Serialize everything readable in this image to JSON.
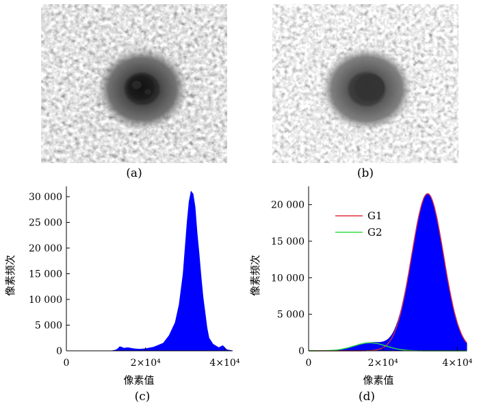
{
  "figure": {
    "captions": {
      "a": "(a)",
      "b": "(b)",
      "c": "(c)",
      "d": "(d)"
    }
  },
  "chart_data": [
    {
      "panel": "c",
      "type": "area",
      "color": "#0000ff",
      "xlabel": "像素值",
      "ylabel": "像素频次",
      "xlim": [
        0,
        42000
      ],
      "ylim": [
        0,
        32000
      ],
      "xticks": [
        0,
        20000,
        40000
      ],
      "xtick_labels": [
        "0",
        "2×10⁴",
        "4×10⁴"
      ],
      "yticks": [
        0,
        5000,
        10000,
        15000,
        20000,
        25000,
        30000
      ],
      "ytick_labels": [
        "0",
        "5 000",
        "10 000",
        "15 000",
        "20 000",
        "25 000",
        "30 000"
      ],
      "grid": false,
      "series": [
        {
          "x": [
            0,
            11500,
            12500,
            13000,
            13500,
            14000,
            14500,
            15500,
            17000,
            18500,
            20000,
            22000,
            24500,
            26000,
            27500,
            28500,
            29500,
            30000,
            30500,
            31000,
            31500,
            32000,
            32500,
            33000,
            33500,
            34000,
            34500,
            35000,
            35500,
            36000,
            37000,
            38500,
            39500,
            40500,
            42000
          ],
          "y": [
            0,
            0,
            150,
            400,
            800,
            700,
            500,
            600,
            400,
            300,
            400,
            700,
            1500,
            3000,
            5500,
            9000,
            15000,
            20000,
            25000,
            29000,
            31000,
            30500,
            28000,
            23000,
            19000,
            14500,
            10500,
            7500,
            4500,
            2500,
            1300,
            600,
            1000,
            200,
            0
          ]
        }
      ]
    },
    {
      "panel": "d",
      "type": "area",
      "color": "#0000ff",
      "xlabel": "像素值",
      "ylabel": "像素频次",
      "xlim": [
        0,
        42500
      ],
      "ylim": [
        0,
        22500
      ],
      "xticks": [
        0,
        20000,
        40000
      ],
      "xtick_labels": [
        "0",
        "2×10⁴",
        "4×10⁴"
      ],
      "yticks": [
        0,
        5000,
        10000,
        15000,
        20000
      ],
      "ytick_labels": [
        "0",
        "5 000",
        "10 000",
        "15 000",
        "20 000"
      ],
      "grid": false,
      "legend": {
        "position": "top-left",
        "entries": [
          "G1",
          "G2"
        ]
      },
      "series": [
        {
          "name": "G1",
          "color": "#e0303c",
          "mu": 32000,
          "sigma": 4300,
          "amplitude": 21500
        },
        {
          "name": "G2",
          "color": "#33dd44",
          "mu": 16500,
          "sigma": 4300,
          "amplitude": 1100
        }
      ]
    }
  ]
}
